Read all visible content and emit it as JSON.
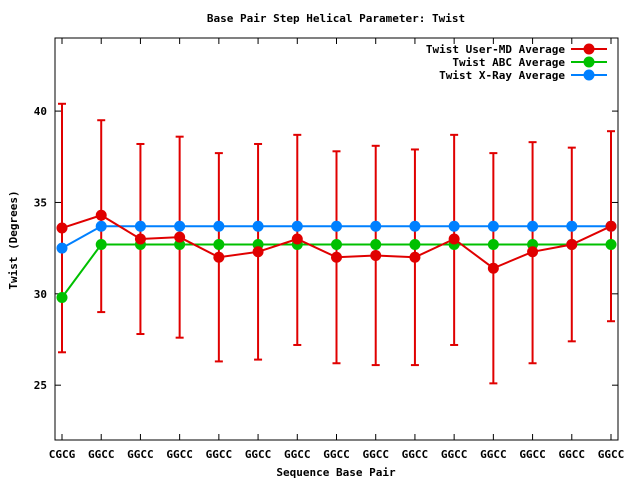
{
  "chart_data": {
    "type": "line",
    "title": "Base Pair Step Helical Parameter: Twist",
    "xlabel": "Sequence Base Pair",
    "ylabel": "Twist (Degrees)",
    "ylim": [
      22,
      44
    ],
    "yticks": [
      25,
      30,
      35,
      40
    ],
    "categories": [
      "CGCG",
      "GGCC",
      "GGCC",
      "GGCC",
      "GGCC",
      "GGCC",
      "GGCC",
      "GGCC",
      "GGCC",
      "GGCC",
      "GGCC",
      "GGCC",
      "GGCC",
      "GGCC",
      "GGCC"
    ],
    "legend_position": "top-right",
    "grid": false,
    "series": [
      {
        "name": "Twist User-MD Average",
        "color": "#e00000",
        "values": [
          33.6,
          34.3,
          33.0,
          33.1,
          32.0,
          32.3,
          33.0,
          32.0,
          32.1,
          32.0,
          33.0,
          31.4,
          32.3,
          32.7,
          33.7
        ],
        "error_low": [
          26.8,
          29.0,
          27.8,
          27.6,
          26.3,
          26.4,
          27.2,
          26.2,
          26.1,
          26.1,
          27.2,
          25.1,
          26.2,
          27.4,
          28.5
        ],
        "error_high": [
          40.4,
          39.5,
          38.2,
          38.6,
          37.7,
          38.2,
          38.7,
          37.8,
          38.1,
          37.9,
          38.7,
          37.7,
          38.3,
          38.0,
          38.9
        ]
      },
      {
        "name": "Twist ABC Average",
        "color": "#00c000",
        "values": [
          29.8,
          32.7,
          32.7,
          32.7,
          32.7,
          32.7,
          32.7,
          32.7,
          32.7,
          32.7,
          32.7,
          32.7,
          32.7,
          32.7,
          32.7
        ]
      },
      {
        "name": "Twist X-Ray Average",
        "color": "#0080ff",
        "values": [
          32.5,
          33.7,
          33.7,
          33.7,
          33.7,
          33.7,
          33.7,
          33.7,
          33.7,
          33.7,
          33.7,
          33.7,
          33.7,
          33.7,
          33.7
        ]
      }
    ]
  }
}
